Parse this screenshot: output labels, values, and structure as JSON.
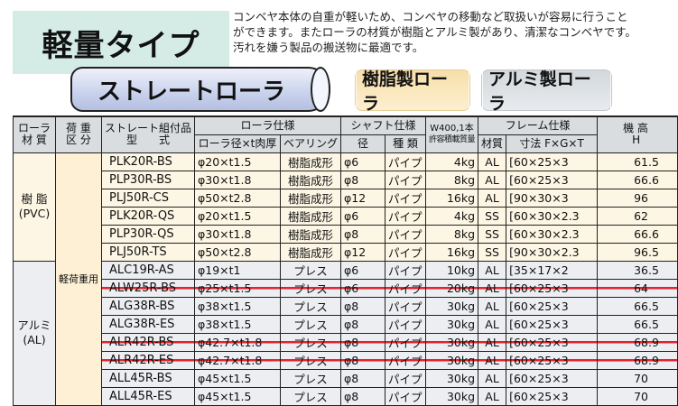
{
  "title": "軽量タイプ",
  "description": [
    "コンベヤ本体の自重が軽いため、コンベヤの移動など取扱いが容易に行うこと",
    "ができます。またローラの材質が樹脂とアルミ製があり、清潔なコンベヤです。",
    "汚れを嫌う製品の搬送物に最適です。"
  ],
  "straight_roller_label": "ストレートローラ",
  "resin_button": "樹脂製ローラ",
  "alum_button": "アルミ製ローラ",
  "headers": {
    "material": [
      "ローラ",
      "材 質"
    ],
    "load": [
      "荷 重",
      "区 分"
    ],
    "model": [
      "ストレート組付品",
      "型　　式"
    ],
    "roller": "ローラ仕様",
    "roller_dim": "ローラ径×t肉厚",
    "bearing": "ベアリング",
    "shaft": "シャフト仕様",
    "shaft_dia": "径",
    "shaft_type": "種 類",
    "capacity": [
      "W400,1本",
      "許容積載質量"
    ],
    "frame": "フレーム仕様",
    "frame_mat": "材質",
    "frame_dim": "寸法 F×G×T",
    "height": [
      "機 高",
      "H"
    ]
  },
  "groups": {
    "resin": [
      "樹 脂",
      "(PVC)"
    ],
    "alum": [
      "アルミ",
      "(AL)"
    ],
    "load_class": "軽荷重用"
  },
  "strike_color": "#e8202a",
  "rows": [
    {
      "g": "resin",
      "model": "PLK20R-BS",
      "roller": "φ20×t1.5",
      "bearing": "樹脂成形",
      "shaft": "φ6",
      "type": "パイプ",
      "cap": "4kg",
      "mat": "AL",
      "frame": "[60×25×3",
      "h": "61.5",
      "strike": false
    },
    {
      "g": "resin",
      "model": "PLP30R-BS",
      "roller": "φ30×t1.8",
      "bearing": "樹脂成形",
      "shaft": "φ8",
      "type": "パイプ",
      "cap": "8kg",
      "mat": "AL",
      "frame": "[60×25×3",
      "h": "66.6",
      "strike": false
    },
    {
      "g": "resin",
      "model": "PLJ50R-CS",
      "roller": "φ50×t2.8",
      "bearing": "樹脂成形",
      "shaft": "φ12",
      "type": "パイプ",
      "cap": "16kg",
      "mat": "AL",
      "frame": "[90×30×3",
      "h": "96",
      "strike": false
    },
    {
      "g": "resin",
      "model": "PLK20R-QS",
      "roller": "φ20×t1.5",
      "bearing": "樹脂成形",
      "shaft": "φ6",
      "type": "パイプ",
      "cap": "4kg",
      "mat": "SS",
      "frame": "[60×30×2.3",
      "h": "62",
      "strike": false
    },
    {
      "g": "resin",
      "model": "PLP30R-QS",
      "roller": "φ30×t1.8",
      "bearing": "樹脂成形",
      "shaft": "φ8",
      "type": "パイプ",
      "cap": "8kg",
      "mat": "SS",
      "frame": "[60×30×2.3",
      "h": "66.6",
      "strike": false
    },
    {
      "g": "resin",
      "model": "PLJ50R-TS",
      "roller": "φ50×t2.8",
      "bearing": "樹脂成形",
      "shaft": "φ12",
      "type": "パイプ",
      "cap": "16kg",
      "mat": "SS",
      "frame": "[90×30×2.3",
      "h": "96.5",
      "strike": false
    },
    {
      "g": "alum",
      "model": "ALC19R-AS",
      "roller": "φ19×t1",
      "bearing": "プレス",
      "shaft": "φ6",
      "type": "パイプ",
      "cap": "10kg",
      "mat": "AL",
      "frame": "[35×17×2",
      "h": "36.5",
      "strike": false
    },
    {
      "g": "alum",
      "model": "ALW25R-BS",
      "roller": "φ25×t1.5",
      "bearing": "プレス",
      "shaft": "φ6",
      "type": "パイプ",
      "cap": "20kg",
      "mat": "AL",
      "frame": "[60×25×3",
      "h": "64",
      "strike": true
    },
    {
      "g": "alum",
      "model": "ALG38R-BS",
      "roller": "φ38×t1.5",
      "bearing": "プレス",
      "shaft": "φ8",
      "type": "パイプ",
      "cap": "30kg",
      "mat": "AL",
      "frame": "[60×25×3",
      "h": "66.5",
      "strike": false
    },
    {
      "g": "alum",
      "model": "ALG38R-ES",
      "roller": "φ38×t1.5",
      "bearing": "プレス",
      "shaft": "φ8",
      "type": "パイプ",
      "cap": "30kg",
      "mat": "AL",
      "frame": "[60×25×3",
      "h": "66.5",
      "strike": false
    },
    {
      "g": "alum",
      "model": "ALR42R-BS",
      "roller": "φ42.7×t1.8",
      "bearing": "プレス",
      "shaft": "φ8",
      "type": "パイプ",
      "cap": "30kg",
      "mat": "AL",
      "frame": "[60×25×3",
      "h": "68.9",
      "strike": true
    },
    {
      "g": "alum",
      "model": "ALR42R-ES",
      "roller": "φ42.7×t1.8",
      "bearing": "プレス",
      "shaft": "φ8",
      "type": "パイプ",
      "cap": "30kg",
      "mat": "AL",
      "frame": "[60×25×3",
      "h": "68.9",
      "strike": true
    },
    {
      "g": "alum",
      "model": "ALL45R-BS",
      "roller": "φ45×t1.5",
      "bearing": "プレス",
      "shaft": "φ8",
      "type": "パイプ",
      "cap": "30kg",
      "mat": "AL",
      "frame": "[60×25×3",
      "h": "70",
      "strike": false
    },
    {
      "g": "alum",
      "model": "ALL45R-ES",
      "roller": "φ45×t1.5",
      "bearing": "プレス",
      "shaft": "φ8",
      "type": "パイプ",
      "cap": "30kg",
      "mat": "AL",
      "frame": "[60×25×3",
      "h": "70",
      "strike": false
    }
  ]
}
